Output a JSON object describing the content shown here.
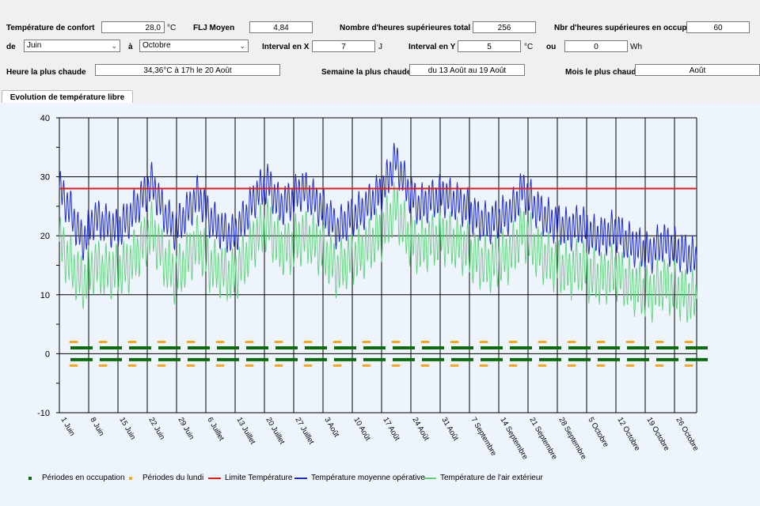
{
  "form": {
    "comfort_label": "Température de confort",
    "comfort_value": "28,0",
    "comfort_unit": "°C",
    "flj_label": "FLJ Moyen",
    "flj_value": "4,84",
    "hours_total_label": "Nombre d'heures supérieures total",
    "hours_total_value": "256",
    "hours_occ_label": "Nbr d'heures supérieures en occup.",
    "hours_occ_value": "60",
    "from_label": "de",
    "from_value": "Juin",
    "to_label": "à",
    "to_value": "Octobre",
    "interval_x_label": "Interval en X",
    "interval_x_value": "7",
    "interval_x_unit": "J",
    "interval_y_label": "Interval en Y",
    "interval_y_value": "5",
    "interval_y_unit": "°C",
    "or_label": "ou",
    "wh_value": "0",
    "wh_unit": "Wh",
    "hottest_hour_label": "Heure la plus chaude",
    "hottest_hour_value": "34,36°C à 17h le 20 Août",
    "hottest_week_label": "Semaine la plus chaude",
    "hottest_week_value": "du 13 Août au 19 Août",
    "hottest_month_label": "Mois le plus chaud",
    "hottest_month_value": "Août"
  },
  "tab": {
    "label": "Evolution de température libre"
  },
  "colors": {
    "occupation": "#0a6b0a",
    "monday": "#f5a623",
    "limit": "#e01b1b",
    "operative": "#1e2bc8",
    "outdoor": "#5fd07a"
  },
  "chart_data": {
    "type": "line",
    "ylim": [
      -10,
      40
    ],
    "yticks": [
      "40",
      "30",
      "20",
      "10",
      "0",
      "-10"
    ],
    "x_ticks": [
      "1 Juin",
      "8 Juin",
      "15 Juin",
      "22 Juin",
      "29 Juin",
      "6 Juillet",
      "13 Juillet",
      "20 Juillet",
      "27 Juillet",
      "3 Août",
      "10 Août",
      "17 Août",
      "24 Août",
      "31 Août",
      "7 Septembre",
      "14 Septembre",
      "21 Septembre",
      "28 Septembre",
      "5 Octobre",
      "12 Octobre",
      "19 Octobre",
      "26 Octobre"
    ],
    "limit_value": 28,
    "series": [
      {
        "name": "Périodes en occupation",
        "values": [
          1,
          -1
        ]
      },
      {
        "name": "Périodes du lundi",
        "values": [
          2,
          -2
        ]
      },
      {
        "name": "Limite Température",
        "values": [
          28
        ]
      },
      {
        "name": "Température moyenne opérative",
        "values": [
          28,
          24,
          19,
          23,
          22,
          21,
          23,
          26,
          29,
          24,
          21,
          24,
          27,
          23,
          21,
          20,
          23,
          27,
          29,
          25,
          26,
          28,
          26,
          24,
          21,
          23,
          24,
          26,
          28,
          33,
          28,
          25,
          26,
          27,
          26,
          25,
          23,
          22,
          23,
          24,
          28,
          25,
          23,
          22,
          21,
          22,
          20,
          20,
          21,
          19,
          18,
          17,
          19,
          18,
          17,
          16
        ]
      },
      {
        "name": "Température de l'air extérieur",
        "values": [
          19,
          15,
          12,
          15,
          14,
          14,
          15,
          18,
          21,
          16,
          13,
          16,
          19,
          15,
          14,
          13,
          16,
          20,
          22,
          18,
          18,
          20,
          19,
          17,
          14,
          16,
          17,
          19,
          21,
          25,
          20,
          18,
          19,
          20,
          19,
          18,
          16,
          15,
          16,
          17,
          21,
          18,
          16,
          15,
          14,
          15,
          13,
          13,
          14,
          12,
          11,
          10,
          12,
          11,
          10,
          9
        ]
      }
    ]
  }
}
